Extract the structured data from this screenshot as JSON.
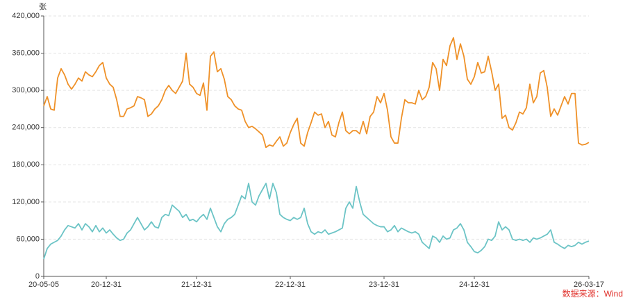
{
  "chart_data": {
    "type": "line",
    "y_unit": "张",
    "source": "数据来源：Wind",
    "categories": [
      "20-05-05",
      null,
      null,
      null,
      null,
      null,
      null,
      null,
      null,
      null,
      null,
      null,
      null,
      null,
      null,
      null,
      null,
      null,
      "20-12-31",
      null,
      null,
      null,
      null,
      null,
      null,
      null,
      null,
      null,
      null,
      null,
      null,
      null,
      null,
      null,
      null,
      null,
      null,
      null,
      null,
      null,
      null,
      null,
      null,
      null,
      "21-12-31",
      null,
      null,
      null,
      null,
      null,
      null,
      null,
      null,
      null,
      null,
      null,
      null,
      null,
      null,
      null,
      null,
      null,
      null,
      null,
      null,
      null,
      null,
      null,
      null,
      null,
      null,
      "22-12-31",
      null,
      null,
      null,
      null,
      null,
      null,
      null,
      null,
      null,
      null,
      null,
      null,
      null,
      null,
      null,
      null,
      null,
      null,
      null,
      null,
      null,
      null,
      null,
      null,
      null,
      null,
      "23-12-31",
      null,
      null,
      null,
      null,
      null,
      null,
      null,
      null,
      null,
      null,
      null,
      null,
      null,
      null,
      null,
      null,
      null,
      null,
      null,
      null,
      null,
      null,
      null,
      null,
      null,
      "24-12-31",
      null,
      null,
      null,
      null,
      null,
      null,
      null,
      null,
      null,
      null,
      null,
      null,
      null,
      null,
      null,
      null,
      null,
      null,
      null,
      null,
      null,
      null,
      null,
      null,
      null,
      null,
      null,
      null,
      null,
      null,
      null,
      null,
      "26-03-17"
    ],
    "series": [
      {
        "color": "#ef9128",
        "values": [
          275000,
          290000,
          270000,
          268000,
          320000,
          335000,
          325000,
          310000,
          302000,
          310000,
          320000,
          315000,
          330000,
          325000,
          322000,
          330000,
          340000,
          345000,
          320000,
          310000,
          305000,
          285000,
          258000,
          258000,
          270000,
          272000,
          275000,
          290000,
          288000,
          285000,
          258000,
          262000,
          270000,
          275000,
          285000,
          300000,
          308000,
          300000,
          295000,
          305000,
          315000,
          360000,
          310000,
          305000,
          295000,
          292000,
          312000,
          268000,
          355000,
          362000,
          330000,
          335000,
          318000,
          290000,
          285000,
          275000,
          270000,
          268000,
          250000,
          240000,
          242000,
          238000,
          233000,
          228000,
          208000,
          212000,
          210000,
          218000,
          225000,
          210000,
          215000,
          232000,
          245000,
          255000,
          215000,
          210000,
          232000,
          248000,
          265000,
          260000,
          262000,
          240000,
          250000,
          228000,
          225000,
          248000,
          265000,
          235000,
          230000,
          235000,
          235000,
          230000,
          250000,
          230000,
          258000,
          265000,
          290000,
          280000,
          295000,
          268000,
          225000,
          215000,
          215000,
          255000,
          285000,
          280000,
          280000,
          278000,
          300000,
          285000,
          290000,
          305000,
          345000,
          335000,
          300000,
          350000,
          340000,
          372000,
          385000,
          350000,
          375000,
          355000,
          318000,
          310000,
          322000,
          345000,
          328000,
          330000,
          355000,
          330000,
          300000,
          310000,
          255000,
          260000,
          240000,
          236000,
          248000,
          265000,
          262000,
          272000,
          310000,
          280000,
          290000,
          328000,
          332000,
          305000,
          258000,
          270000,
          260000,
          275000,
          290000,
          278000,
          295000,
          295000,
          215000,
          212000,
          213000,
          216000
        ]
      },
      {
        "color": "#6cc4c6",
        "values": [
          28000,
          45000,
          52000,
          55000,
          58000,
          65000,
          75000,
          82000,
          80000,
          78000,
          85000,
          75000,
          85000,
          80000,
          72000,
          82000,
          72000,
          78000,
          70000,
          75000,
          68000,
          62000,
          58000,
          60000,
          70000,
          75000,
          85000,
          95000,
          85000,
          75000,
          80000,
          88000,
          80000,
          78000,
          95000,
          100000,
          98000,
          115000,
          110000,
          105000,
          95000,
          100000,
          90000,
          92000,
          88000,
          95000,
          100000,
          92000,
          110000,
          95000,
          80000,
          72000,
          85000,
          92000,
          95000,
          100000,
          115000,
          130000,
          125000,
          150000,
          120000,
          115000,
          130000,
          140000,
          150000,
          125000,
          150000,
          135000,
          100000,
          95000,
          92000,
          90000,
          95000,
          92000,
          95000,
          110000,
          85000,
          72000,
          68000,
          72000,
          70000,
          75000,
          68000,
          70000,
          72000,
          75000,
          78000,
          110000,
          120000,
          110000,
          145000,
          120000,
          100000,
          95000,
          90000,
          85000,
          82000,
          80000,
          80000,
          72000,
          75000,
          82000,
          72000,
          78000,
          75000,
          72000,
          70000,
          72000,
          68000,
          55000,
          50000,
          45000,
          65000,
          62000,
          55000,
          65000,
          60000,
          62000,
          75000,
          78000,
          85000,
          75000,
          55000,
          48000,
          40000,
          38000,
          42000,
          48000,
          60000,
          58000,
          65000,
          88000,
          75000,
          80000,
          75000,
          60000,
          58000,
          60000,
          58000,
          60000,
          55000,
          62000,
          60000,
          62000,
          65000,
          68000,
          75000,
          55000,
          52000,
          48000,
          45000,
          50000,
          48000,
          50000,
          55000,
          52000,
          55000,
          57000
        ]
      }
    ],
    "ylim": [
      0,
      420000
    ],
    "yticks": [
      0,
      {
        "value": 60000,
        "label": "60,000"
      },
      {
        "value": 120000,
        "label": "120,000"
      },
      {
        "value": 180000,
        "label": "180,000"
      },
      {
        "value": 240000,
        "label": "240,000"
      },
      {
        "value": 300000,
        "label": "300,000"
      },
      {
        "value": 360000,
        "label": "360,000"
      },
      {
        "value": 420000,
        "label": "420,000"
      }
    ],
    "grid": true
  }
}
